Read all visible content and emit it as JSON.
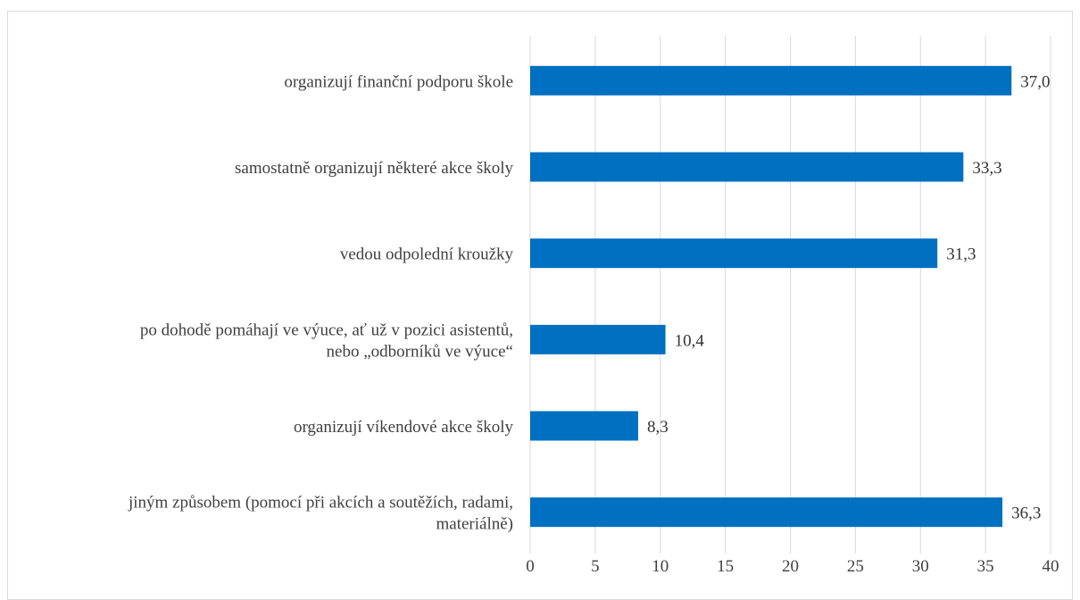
{
  "chart_data": {
    "type": "bar",
    "orientation": "horizontal",
    "categories": [
      [
        "organizují finanční podporu škole"
      ],
      [
        "samostatně organizují některé akce školy"
      ],
      [
        "vedou odpolední kroužky"
      ],
      [
        "po dohodě pomáhají ve výuce, ať už v pozici asistentů,",
        "nebo „odborníků ve výuce“"
      ],
      [
        "organizují víkendové akce školy"
      ],
      [
        "jiným způsobem (pomocí při akcích a soutěžích, radami,",
        "materiálně)"
      ]
    ],
    "values": [
      37.0,
      33.3,
      31.3,
      10.4,
      8.3,
      36.3
    ],
    "data_labels": [
      "37,0",
      "33,3",
      "31,3",
      "10,4",
      "8,3",
      "36,3"
    ],
    "xlim": [
      0,
      40
    ],
    "x_ticks": [
      0,
      5,
      10,
      15,
      20,
      25,
      30,
      35,
      40
    ],
    "x_tick_labels": [
      "0",
      "5",
      "10",
      "15",
      "20",
      "25",
      "30",
      "35",
      "40"
    ],
    "grid": true,
    "legend": "none",
    "title": "",
    "xlabel": "",
    "ylabel": "",
    "colors": {
      "bar": "#0070c0",
      "grid": "#d9d9d9",
      "text": "#404040"
    }
  }
}
